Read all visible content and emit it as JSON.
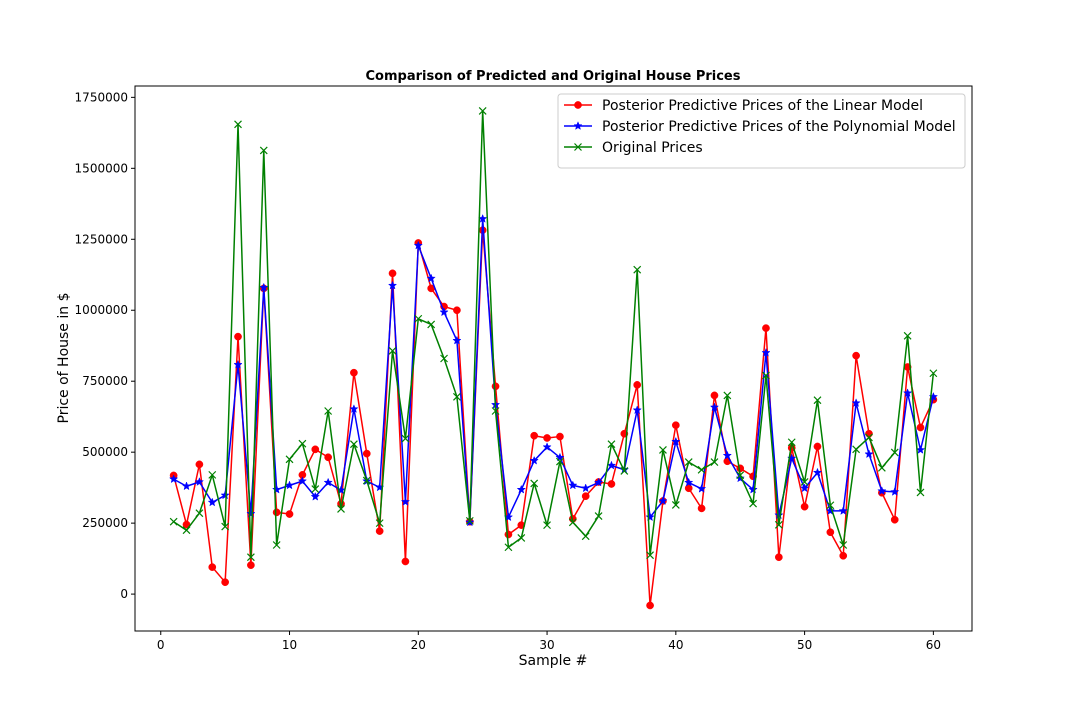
{
  "chart_data": {
    "type": "line",
    "title": "Comparison of Predicted and Original House Prices",
    "xlabel": "Sample #",
    "ylabel": "Price of House in $",
    "xlim": [
      -2,
      63
    ],
    "ylim": [
      -130000,
      1790000
    ],
    "xticks": [
      0,
      10,
      20,
      30,
      40,
      50,
      60
    ],
    "yticks": [
      0,
      250000,
      500000,
      750000,
      1000000,
      1250000,
      1500000,
      1750000
    ],
    "grid": false,
    "legend_position": "top-right",
    "x": [
      1,
      2,
      3,
      4,
      5,
      6,
      7,
      8,
      9,
      10,
      11,
      12,
      13,
      14,
      15,
      16,
      17,
      18,
      19,
      20,
      21,
      22,
      23,
      24,
      25,
      26,
      27,
      28,
      29,
      30,
      31,
      32,
      33,
      34,
      35,
      36,
      37,
      38,
      39,
      40,
      41,
      42,
      43,
      44,
      45,
      46,
      47,
      48,
      49,
      50,
      51,
      52,
      53,
      54,
      55,
      56,
      57,
      58,
      59,
      60
    ],
    "series": [
      {
        "name": "Posterior Predictive Prices of the Linear Model",
        "color": "#ff0000",
        "marker": "circle",
        "values": [
          418000,
          245000,
          457000,
          95000,
          42000,
          907000,
          102000,
          1077000,
          288000,
          282000,
          420000,
          510000,
          482000,
          318000,
          780000,
          495000,
          222000,
          1130000,
          115000,
          1237000,
          1077000,
          1013000,
          1000000,
          255000,
          1282000,
          732000,
          210000,
          243000,
          558000,
          550000,
          555000,
          265000,
          345000,
          395000,
          388000,
          565000,
          737000,
          -40000,
          328000,
          595000,
          373000,
          302000,
          700000,
          468000,
          443000,
          415000,
          937000,
          130000,
          515000,
          308000,
          520000,
          218000,
          135000,
          840000,
          565000,
          357000,
          262000,
          800000,
          587000,
          685000
        ]
      },
      {
        "name": "Posterior Predictive Prices of the Polynomial Model",
        "color": "#0000ff",
        "marker": "star",
        "values": [
          405000,
          380000,
          395000,
          323000,
          348000,
          808000,
          283000,
          1080000,
          368000,
          383000,
          398000,
          343000,
          393000,
          366000,
          652000,
          398000,
          376000,
          1087000,
          325000,
          1228000,
          1112000,
          993000,
          893000,
          253000,
          1322000,
          667000,
          271000,
          368000,
          470000,
          518000,
          481000,
          383000,
          373000,
          393000,
          453000,
          438000,
          648000,
          271000,
          328000,
          537000,
          393000,
          371000,
          658000,
          488000,
          408000,
          368000,
          850000,
          278000,
          478000,
          373000,
          428000,
          293000,
          293000,
          673000,
          493000,
          363000,
          360000,
          708000,
          508000,
          695000
        ]
      },
      {
        "name": "Original Prices",
        "color": "#008000",
        "marker": "x",
        "values": [
          255000,
          225000,
          285000,
          420000,
          238000,
          1655000,
          130000,
          1563000,
          173000,
          475000,
          530000,
          370000,
          645000,
          300000,
          528000,
          400000,
          250000,
          857000,
          548000,
          970000,
          950000,
          830000,
          695000,
          258000,
          1702000,
          645000,
          165000,
          198000,
          390000,
          243000,
          467000,
          253000,
          204000,
          275000,
          528000,
          434000,
          1143000,
          137000,
          508000,
          314000,
          465000,
          438000,
          465000,
          700000,
          419000,
          319000,
          770000,
          244000,
          535000,
          395000,
          683000,
          313000,
          173000,
          510000,
          552000,
          445000,
          499000,
          910000,
          358000,
          778000
        ]
      }
    ]
  }
}
